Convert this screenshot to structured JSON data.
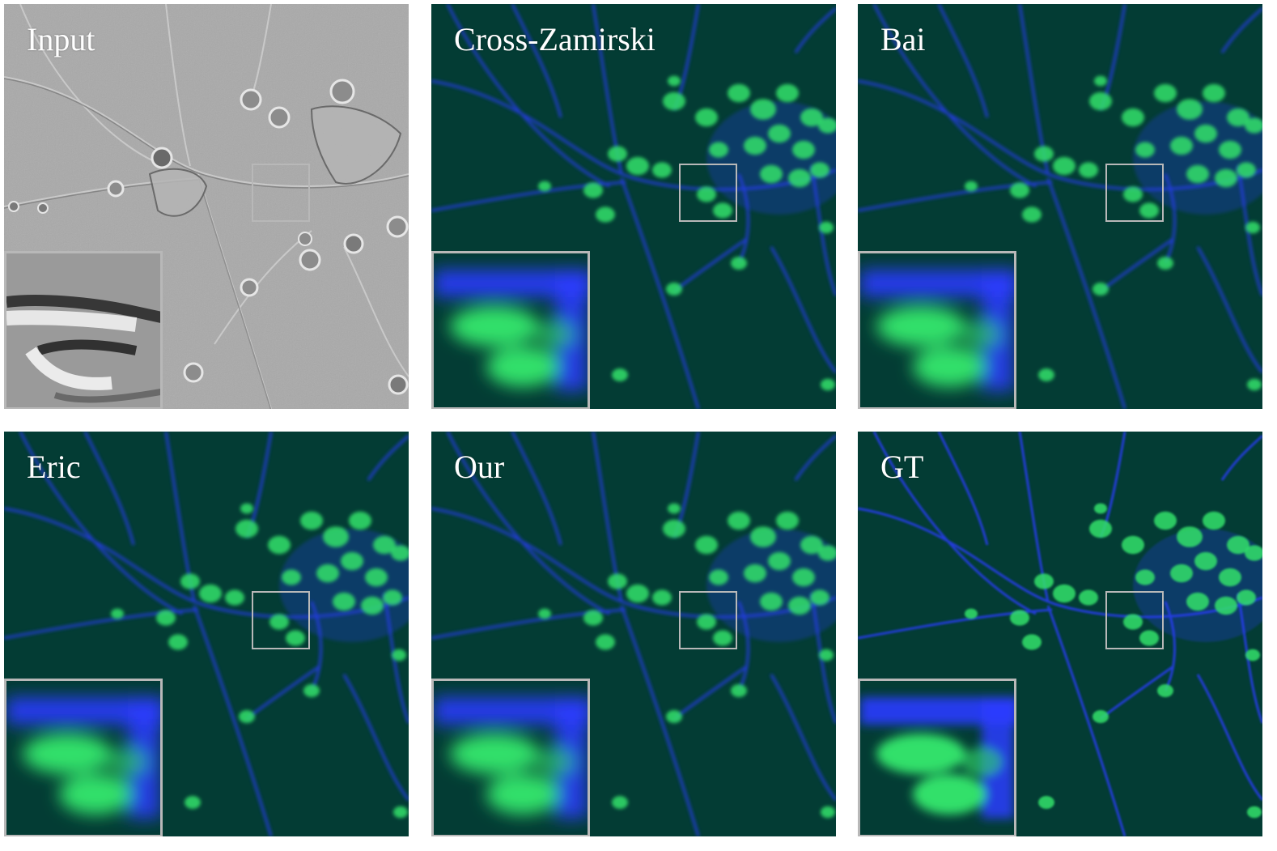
{
  "figure": {
    "panels": [
      {
        "id": "input",
        "label": "Input",
        "style": "dic"
      },
      {
        "id": "cross-zamirski",
        "label": "Cross-Zamirski",
        "style": "fluorescence"
      },
      {
        "id": "bai",
        "label": "Bai",
        "style": "fluorescence"
      },
      {
        "id": "eric",
        "label": "Eric",
        "style": "fluorescence"
      },
      {
        "id": "our",
        "label": "Our",
        "style": "fluorescence"
      },
      {
        "id": "gt",
        "label": "GT",
        "style": "fluorescence"
      }
    ],
    "colors": {
      "fluor_background": "#033c34",
      "neurite_blue": "#2a3cff",
      "nucleus_green": "#31e06a",
      "dic_background": "#a9a9a9",
      "box_gray": "#b8b8b8"
    }
  }
}
